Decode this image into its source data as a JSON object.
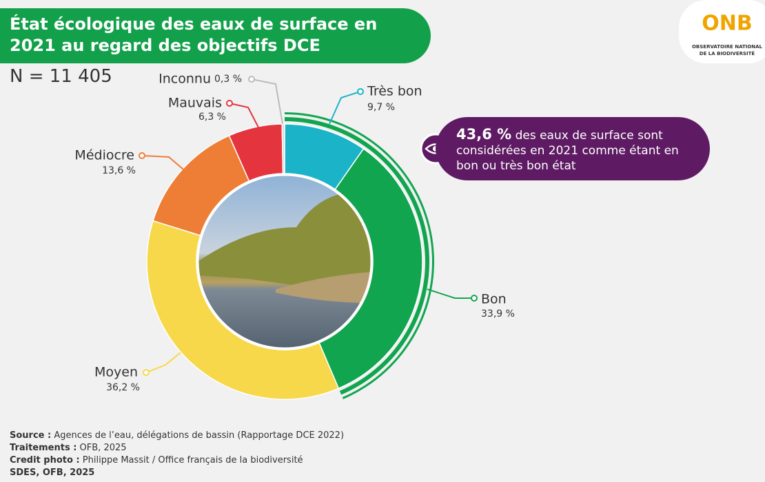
{
  "chart_data": {
    "type": "pie",
    "title": "État écologique des eaux de surface en 2021 au regard des objectifs DCE",
    "subtitle": "N = 11 405",
    "categories": [
      "Très bon",
      "Bon",
      "Moyen",
      "Médiocre",
      "Mauvais",
      "Inconnu"
    ],
    "values": [
      9.7,
      33.9,
      36.2,
      13.6,
      6.3,
      0.3
    ],
    "value_labels": [
      "9,7 %",
      "33,9 %",
      "36,2 %",
      "13,6 %",
      "6,3 %",
      "0,3 %"
    ],
    "colors": [
      "#1bb3c8",
      "#12a550",
      "#f6d84a",
      "#ee7d35",
      "#e4353f",
      "#d9d9d9"
    ],
    "highlight": {
      "value": 43.6,
      "label": "43,6 %",
      "text": "des eaux de surface sont considérées en 2021 comme étant en bon ou très bon état"
    },
    "logo": {
      "name": "ONB",
      "line1": "OBSERVATOIRE NATIONAL",
      "line2": "DE LA BIODIVERSITÉ"
    },
    "footer": [
      {
        "label": "Source :",
        "text": "Agences de l’eau, délégations de bassin (Rapportage DCE 2022)"
      },
      {
        "label": "Traitements :",
        "text": "OFB, 2025"
      },
      {
        "label": "Credit photo :",
        "text": "Philippe Massit / Office français de la biodiversité"
      },
      {
        "label": "SDES, OFB, 2025",
        "text": ""
      }
    ]
  }
}
